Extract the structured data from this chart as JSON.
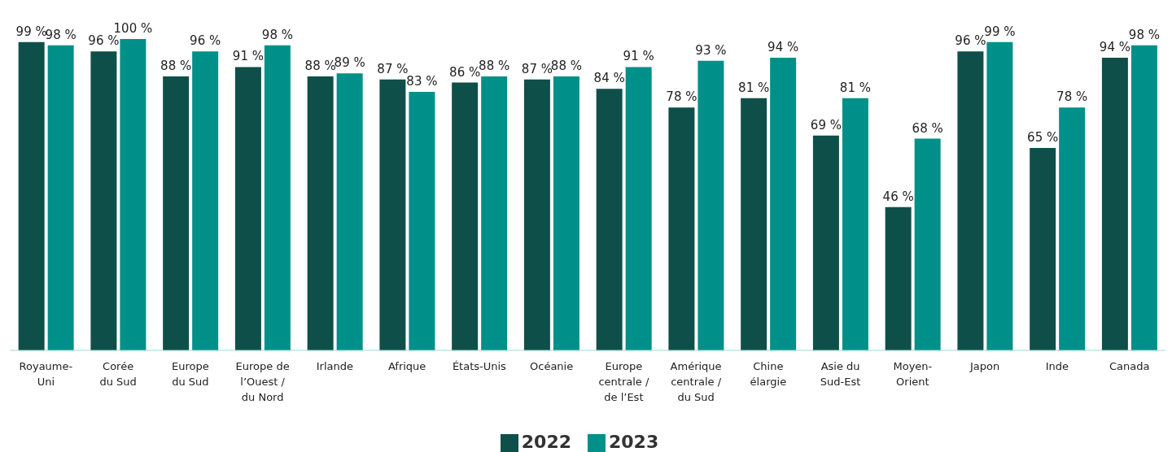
{
  "chart_data": {
    "type": "bar",
    "categories": [
      "Royaume-\nUni",
      "Corée\ndu Sud",
      "Europe\ndu Sud",
      "Europe de\nl’Ouest /\ndu Nord",
      "Irlande",
      "Afrique",
      "États-Unis",
      "Océanie",
      "Europe\ncentrale /\nde l’Est",
      "Amérique\ncentrale /\ndu Sud",
      "Chine\nélargie",
      "Asie du\nSud-Est",
      "Moyen-\nOrient",
      "Japon",
      "Inde",
      "Canada"
    ],
    "series": [
      {
        "name": "2022",
        "color": "#0f4f4a",
        "values": [
          99,
          96,
          88,
          91,
          88,
          87,
          86,
          87,
          84,
          78,
          81,
          69,
          46,
          96,
          65,
          94
        ],
        "value_labels": [
          "99 %",
          "96 %",
          "88 %",
          "91 %",
          "88 %",
          "87 %",
          "86 %",
          "87 %",
          "84 %",
          "78 %",
          "81 %",
          "69 %",
          "46 %",
          "96 %",
          "65 %",
          "94 %"
        ]
      },
      {
        "name": "2023",
        "color": "#00908a",
        "values": [
          98,
          100,
          96,
          98,
          89,
          83,
          88,
          88,
          91,
          93,
          94,
          81,
          68,
          99,
          78,
          98
        ],
        "value_labels": [
          "98 %",
          "100 %",
          "96 %",
          "98 %",
          "89 %",
          "83 %",
          "88 %",
          "88 %",
          "91 %",
          "93 %",
          "94 %",
          "81 %",
          "68 %",
          "99 %",
          "78 %",
          "98 %"
        ]
      }
    ],
    "legend": "bottom"
  }
}
